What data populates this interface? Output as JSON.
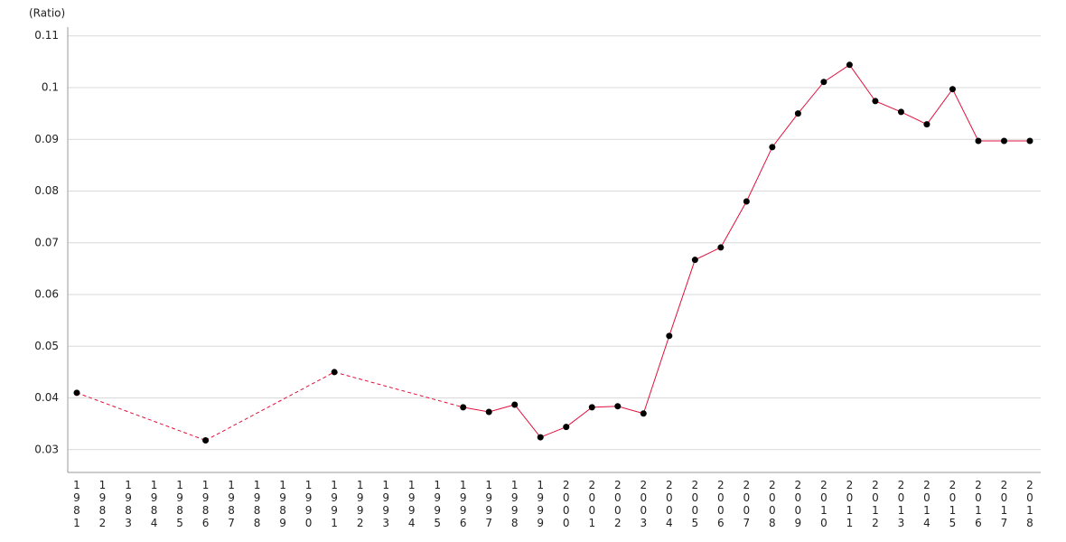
{
  "chart_data": {
    "type": "line",
    "y_label": "(Ratio)",
    "categories": [
      "1981",
      "1982",
      "1983",
      "1984",
      "1985",
      "1986",
      "1987",
      "1988",
      "1989",
      "1990",
      "1991",
      "1992",
      "1993",
      "1994",
      "1995",
      "1996",
      "1997",
      "1998",
      "1999",
      "2000",
      "2001",
      "2002",
      "2003",
      "2004",
      "2005",
      "2006",
      "2007",
      "2008",
      "2009",
      "2010",
      "2011",
      "2012",
      "2013",
      "2014",
      "2015",
      "2016",
      "2017",
      "2018"
    ],
    "series": [
      {
        "color": "#e0103c",
        "values": [
          0.041,
          null,
          null,
          null,
          null,
          0.0318,
          null,
          null,
          null,
          null,
          0.045,
          null,
          null,
          null,
          null,
          0.0382,
          0.0373,
          0.0387,
          0.0324,
          0.0344,
          0.0382,
          0.0384,
          0.037,
          0.052,
          0.0667,
          0.0691,
          0.078,
          0.0885,
          0.095,
          0.1011,
          0.1044,
          0.0974,
          0.0953,
          0.0929,
          0.0997,
          0.0897,
          0.0897,
          0.0897
        ]
      }
    ],
    "ylim": [
      0.0256,
      0.1117
    ],
    "yticks": [
      0.03,
      0.04,
      0.05,
      0.06,
      0.07,
      0.08,
      0.09,
      0.1,
      0.11
    ],
    "grid": true
  }
}
